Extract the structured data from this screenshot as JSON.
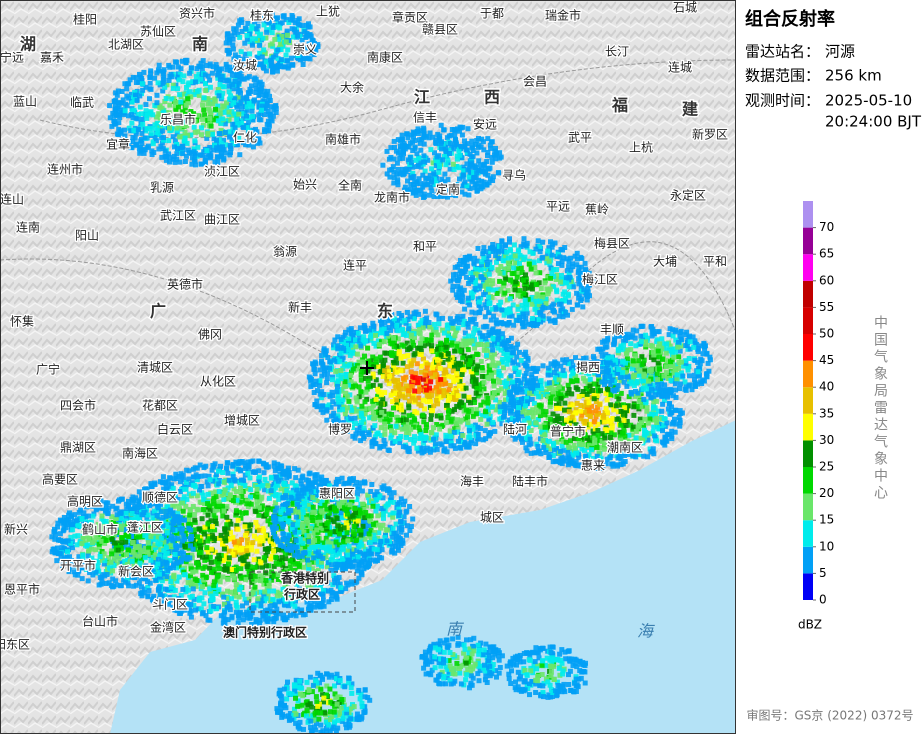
{
  "panel": {
    "title": "组合反射率",
    "station_label": "雷达站名：",
    "station": "河源",
    "range_label": "数据范围：",
    "range": "256 km",
    "time_label": "观测时间：",
    "date": "2025-05-10",
    "time": "20:24:00 BJT"
  },
  "legend": {
    "ticks": [
      0,
      5,
      10,
      15,
      20,
      25,
      30,
      35,
      40,
      45,
      50,
      55,
      60,
      65,
      70
    ],
    "colors": [
      "#0000f6",
      "#01a0f6",
      "#00ecec",
      "#6ae66a",
      "#00d800",
      "#019000",
      "#ffff00",
      "#e7c000",
      "#ff9000",
      "#ff0000",
      "#d60000",
      "#c00000",
      "#ff00f0",
      "#960096",
      "#ad90f0"
    ],
    "unit": "dBZ"
  },
  "credit": "中国气象局雷达气象中心",
  "footer": "审图号：GS京 (2022) 0372号",
  "map": {
    "places": [
      "桂阳",
      "资兴市",
      "桂东",
      "上犹",
      "章贡区",
      "赣县区",
      "于都",
      "瑞金市",
      "石城",
      "长汀",
      "连城",
      "北湖区",
      "苏仙区",
      "宁远",
      "嘉禾",
      "汝城",
      "崇义",
      "南康区",
      "会昌",
      "蓝山",
      "临武",
      "大余",
      "信丰",
      "安远",
      "武平",
      "新罗区",
      "乐昌市",
      "宜章",
      "仁化",
      "南雄市",
      "上杭",
      "连州市",
      "浈江区",
      "始兴",
      "全南",
      "龙南市",
      "定南",
      "寻乌",
      "永定区",
      "乳源",
      "连山",
      "武江区",
      "曲江区",
      "平远",
      "蕉岭",
      "阳山",
      "连南",
      "翁源",
      "和平",
      "梅县区",
      "英德市",
      "连平",
      "梅江区",
      "大埔",
      "平和",
      "怀集",
      "新丰",
      "佛冈",
      "丰顺",
      "广宁",
      "清城区",
      "从化区",
      "揭西",
      "四会市",
      "花都区",
      "增城区",
      "白云区",
      "博罗",
      "陆河",
      "普宁市",
      "潮南区",
      "鼎湖区",
      "惠来",
      "南海区",
      "高要区",
      "海丰",
      "陆丰市",
      "顺德区",
      "高明区",
      "惠阳区",
      "鹤山市",
      "蓬江区",
      "城区",
      "新兴",
      "开平市",
      "新会区",
      "恩平市",
      "斗门区",
      "台山市",
      "金湾区",
      "阳东区"
    ],
    "regions": [
      "湖",
      "南",
      "江",
      "西",
      "福",
      "建",
      "广",
      "东"
    ],
    "sea": [
      "南",
      "海"
    ],
    "special_regions": [
      "香港特别",
      "行政区",
      "澳门特别行政区"
    ]
  }
}
